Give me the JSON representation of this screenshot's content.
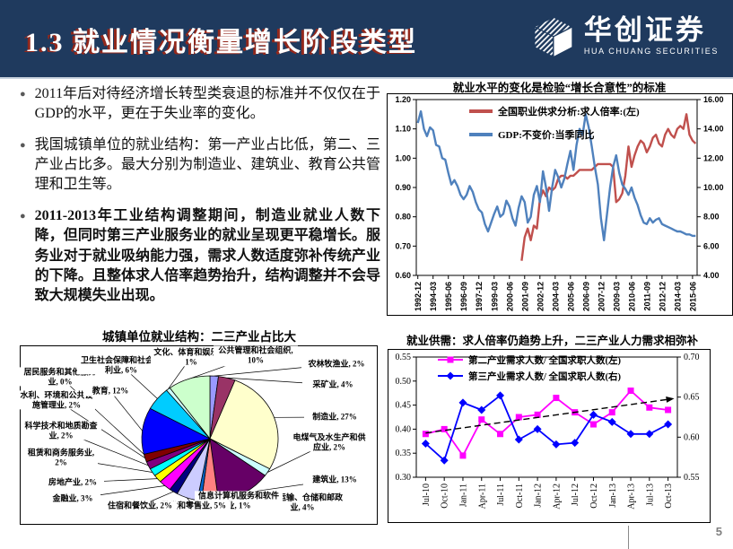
{
  "header": {
    "title": "1.3 就业情况衡量增长阶段类型",
    "logo_text": "华创证券",
    "logo_subtext": "HUA CHUANG SECURITIES"
  },
  "bullets": [
    {
      "text": "2011年后对待经济增长转型类衰退的标准并不仅仅在于GDP的水平，更在于失业率的变化。",
      "bold": false
    },
    {
      "text": "我国城镇单位的就业结构：第一产业占比低，第二、三产业占比多。最大分别为制造业、建筑业、教育公共管理和卫生等。",
      "bold": false
    },
    {
      "text": "2011-2013年工业结构调整期间，制造业就业人数下降，但同时第三产业服务业的就业呈现更平稳增长。服务业对于就业吸纳能力强，需求人数适度弥补传统产业的下降。且整体求人倍率趋势抬升，结构调整并不会导致大规模失业出现。",
      "bold": true
    }
  ],
  "footer": {
    "page_number": "5"
  },
  "chart_data": [
    {
      "id": "employment-gdp",
      "type": "line",
      "title": "就业水平的变化是检验“增长合意性”的标准",
      "x_tick_labels": [
        "1992-12",
        "1994-03",
        "1995-06",
        "1996-09",
        "1997-12",
        "1999-03",
        "2000-06",
        "2001-09",
        "2002-12",
        "2004-03",
        "2005-06",
        "2006-09",
        "2007-12",
        "2009-03",
        "2010-06",
        "2011-09",
        "2012-12",
        "2014-03",
        "2015-06"
      ],
      "x_tick_every": 5,
      "x_count": 92,
      "left_axis": {
        "min": 0.6,
        "max": 1.2,
        "ticks": [
          "1.20",
          "1.10",
          "1.00",
          "0.90",
          "0.80",
          "0.70",
          "0.60"
        ]
      },
      "right_axis": {
        "min": 4.0,
        "max": 16.0,
        "ticks": [
          "16.00",
          "14.00",
          "12.00",
          "10.00",
          "8.00",
          "6.00",
          "4.00"
        ]
      },
      "legend_position": "top-inside",
      "grid": false,
      "series": [
        {
          "name": "全国职业供求分析:求人倍率:(左)",
          "axis": "left",
          "color": "#C0504D",
          "start": 34,
          "values": [
            0.65,
            0.73,
            0.76,
            0.72,
            0.77,
            0.76,
            0.86,
            0.89,
            0.87,
            0.9,
            0.89,
            0.9,
            0.93,
            0.94,
            0.94,
            0.93,
            0.94,
            0.94,
            0.95,
            0.96,
            0.96,
            0.96,
            0.96,
            0.96,
            0.97,
            0.98,
            0.98,
            0.98,
            0.98,
            0.98,
            0.97,
            0.85,
            0.86,
            0.88,
            0.94,
            1.04,
            0.97,
            1.01,
            1.04,
            1.06,
            1.05,
            1.02,
            1.04,
            1.07,
            1.08,
            1.05,
            1.04,
            1.08,
            1.1,
            1.08,
            1.07,
            1.1,
            1.11,
            1.1,
            1.15,
            1.08,
            1.06,
            1.05
          ]
        },
        {
          "name": "GDP:不变价:当季同比",
          "axis": "right",
          "color": "#4F81BD",
          "start": 0,
          "values": [
            14.4,
            15.2,
            14.0,
            13.5,
            14.1,
            13.9,
            12.9,
            12.8,
            12.0,
            11.9,
            11.0,
            10.2,
            10.5,
            10.1,
            9.5,
            9.2,
            9.5,
            10.1,
            9.7,
            9.0,
            8.5,
            8.3,
            7.5,
            7.0,
            7.6,
            8.2,
            8.7,
            8.0,
            8.2,
            9.1,
            8.7,
            7.9,
            7.4,
            8.6,
            9.4,
            9.0,
            7.6,
            8.0,
            9.5,
            10.1,
            9.0,
            11.1,
            10.0,
            8.4,
            10.0,
            11.2,
            10.7,
            10.0,
            10.6,
            11.6,
            12.5,
            11.2,
            12.9,
            14.0,
            13.6,
            15.0,
            14.1,
            12.8,
            11.4,
            10.2,
            7.9,
            6.4,
            8.2,
            10.0,
            11.4,
            12.2,
            11.0,
            10.2,
            9.9,
            9.5,
            10.0,
            9.3,
            8.8,
            8.1,
            7.6,
            7.5,
            7.9,
            7.6,
            7.8,
            7.9,
            7.5,
            7.4,
            7.3,
            7.2,
            7.1,
            7.0,
            7.0,
            6.9,
            6.8,
            6.8,
            6.7,
            6.7
          ]
        }
      ]
    },
    {
      "id": "supply-demand",
      "type": "line",
      "title": "就业供需：求人倍率仍趋势上升，二三产业人力需求相弥补",
      "x_tick_labels": [
        "Jul-10",
        "Oct-10",
        "Jan-11",
        "Apr-11",
        "Jul-11",
        "Oct-11",
        "Jan-12",
        "Apr-12",
        "Jul-12",
        "Oct-12",
        "Jan-13",
        "Apr-13",
        "Jul-13",
        "Oct-13"
      ],
      "x_tick_every": 1,
      "x_count": 14,
      "left_axis": {
        "min": 0.3,
        "max": 0.55,
        "ticks": [
          "0.55",
          "0.50",
          "0.45",
          "0.40",
          "0.35",
          "0.30"
        ]
      },
      "right_axis": {
        "min": 0.55,
        "max": 0.7,
        "ticks": [
          "0.70",
          "0.65",
          "0.60",
          "0.55"
        ]
      },
      "legend_position": "top-inside",
      "grid": false,
      "series": [
        {
          "name": "第二产业需求人数/ 全国求职人数(左)",
          "axis": "left",
          "color": "#FF00FF",
          "marker": "square",
          "start": 0,
          "values": [
            0.39,
            0.4,
            0.345,
            0.42,
            0.39,
            0.425,
            0.43,
            0.465,
            0.435,
            0.41,
            0.435,
            0.48,
            0.445,
            0.44
          ]
        },
        {
          "name": "第三产业需求人数/ 全国求职人数(右)",
          "axis": "right",
          "color": "#0000FF",
          "marker": "diamond",
          "start": 0,
          "values": [
            0.592,
            0.571,
            0.643,
            0.634,
            0.652,
            0.597,
            0.61,
            0.591,
            0.593,
            0.628,
            0.619,
            0.604,
            0.604,
            0.616
          ]
        }
      ],
      "trend": {
        "axis": "left",
        "from": 0.392,
        "to": 0.462,
        "style": "dashed",
        "color": "#000000"
      }
    },
    {
      "id": "employment-structure",
      "type": "pie",
      "title": "城镇单位就业结构：二三产业占比大",
      "slices": [
        {
          "name": "农林牧渔业",
          "pct": 2,
          "color": "#9999FF"
        },
        {
          "name": "采矿业",
          "pct": 4,
          "color": "#993366"
        },
        {
          "name": "制造业",
          "pct": 27,
          "color": "#FFFFCC"
        },
        {
          "name": "电煤气及水生产和供应业",
          "pct": 2,
          "color": "#CCFFFF"
        },
        {
          "name": "建筑业",
          "pct": 13,
          "color": "#660066"
        },
        {
          "name": "交通运输、仓储和邮政业",
          "pct": 4,
          "color": "#FF8080"
        },
        {
          "name": "信息计算机服务和软件业",
          "pct": 1,
          "color": "#0066CC"
        },
        {
          "name": "批发和零售业",
          "pct": 5,
          "color": "#CCCCFF"
        },
        {
          "name": "住宿和餐饮业",
          "pct": 2,
          "color": "#000080"
        },
        {
          "name": "金融业",
          "pct": 3,
          "color": "#FF00FF"
        },
        {
          "name": "房地产业",
          "pct": 2,
          "color": "#FFFF00"
        },
        {
          "name": "租赁和商务服务业",
          "pct": 2,
          "color": "#00FFFF"
        },
        {
          "name": "科学技术和地质勘查业",
          "pct": 2,
          "color": "#800080"
        },
        {
          "name": "水利、环境和公共设施管理业",
          "pct": 2,
          "color": "#800000"
        },
        {
          "name": "居民服务和其他服务业",
          "pct": 0,
          "color": "#008080"
        },
        {
          "name": "教育",
          "pct": 12,
          "color": "#0000FF"
        },
        {
          "name": "卫生社会保障和社会福利业",
          "pct": 6,
          "color": "#00CCFF"
        },
        {
          "name": "文化、体育和娱乐业",
          "pct": 1,
          "color": "#CCFFFF"
        },
        {
          "name": "公共管理和社会组织",
          "pct": 10,
          "color": "#CCFFCC"
        }
      ]
    }
  ]
}
